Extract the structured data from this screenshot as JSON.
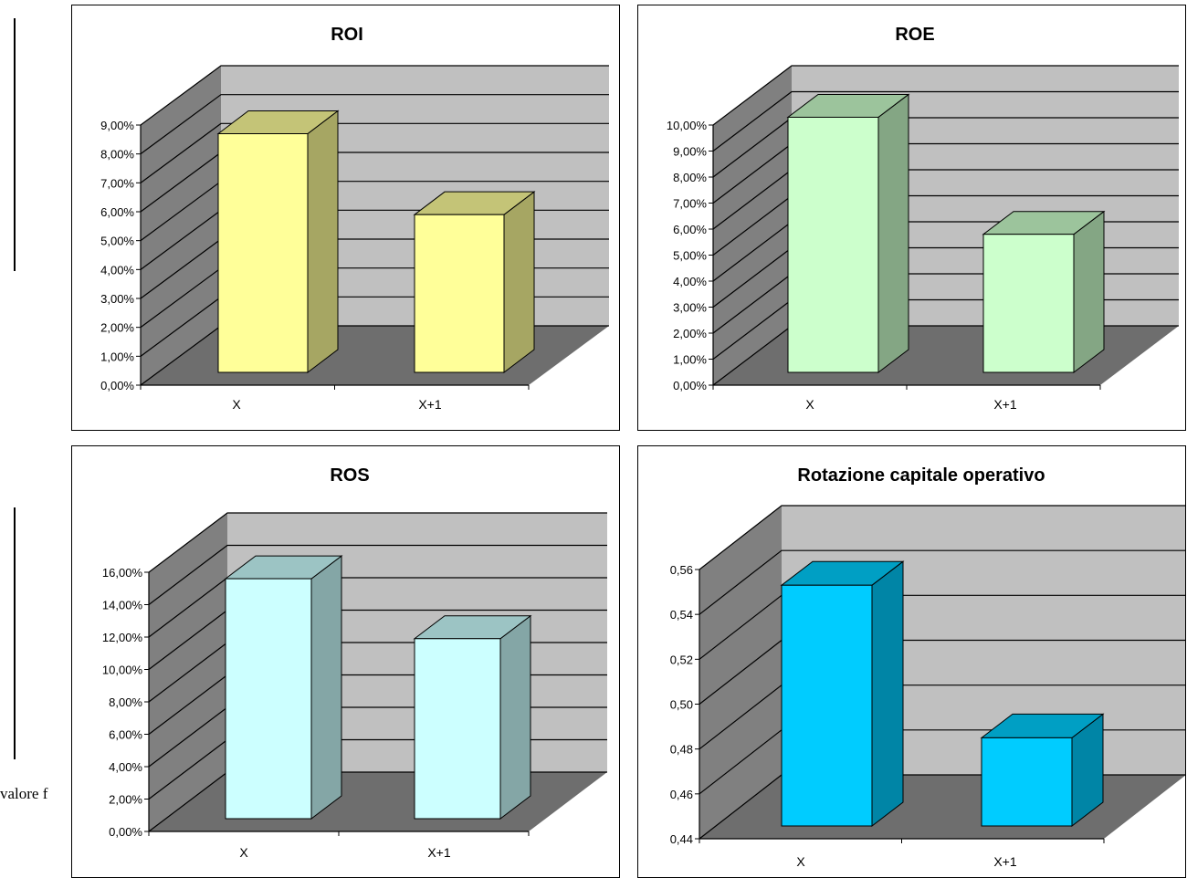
{
  "page": {
    "side_text": "valore f"
  },
  "chart_data": [
    {
      "type": "bar",
      "title": "ROI",
      "categories": [
        "X",
        "X+1"
      ],
      "values": [
        8.7,
        5.9
      ],
      "ylim": [
        0,
        9
      ],
      "yticks": [
        "0,00%",
        "1,00%",
        "2,00%",
        "3,00%",
        "4,00%",
        "5,00%",
        "6,00%",
        "7,00%",
        "8,00%",
        "9,00%"
      ],
      "grid": true,
      "colors": {
        "front": "#FFFF99",
        "side": "#A6A663",
        "top": "#C4C477"
      }
    },
    {
      "type": "bar",
      "title": "ROE",
      "categories": [
        "X",
        "X+1"
      ],
      "values": [
        10.3,
        5.8
      ],
      "ylim": [
        0,
        10
      ],
      "yticks": [
        "0,00%",
        "1,00%",
        "2,00%",
        "3,00%",
        "4,00%",
        "5,00%",
        "6,00%",
        "7,00%",
        "8,00%",
        "9,00%",
        "10,00%"
      ],
      "grid": true,
      "colors": {
        "front": "#CCFFCC",
        "side": "#84A684",
        "top": "#9CC49C"
      }
    },
    {
      "type": "bar",
      "title": "ROS",
      "categories": [
        "X",
        "X+1"
      ],
      "values": [
        15.6,
        11.9
      ],
      "ylim": [
        0,
        16
      ],
      "yticks": [
        "0,00%",
        "2,00%",
        "4,00%",
        "6,00%",
        "8,00%",
        "10,00%",
        "12,00%",
        "14,00%",
        "16,00%"
      ],
      "grid": true,
      "colors": {
        "front": "#CCFFFF",
        "side": "#84A6A6",
        "top": "#9CC4C4"
      }
    },
    {
      "type": "bar",
      "title": "Rotazione capitale operativo",
      "categories": [
        "X",
        "X+1"
      ],
      "values": [
        0.553,
        0.485
      ],
      "ylim": [
        0.44,
        0.56
      ],
      "yticks": [
        "0,44",
        "0,46",
        "0,48",
        "0,50",
        "0,52",
        "0,54",
        "0,56"
      ],
      "grid": true,
      "colors": {
        "front": "#00CCFF",
        "side": "#0085A6",
        "top": "#009FC4"
      }
    }
  ]
}
